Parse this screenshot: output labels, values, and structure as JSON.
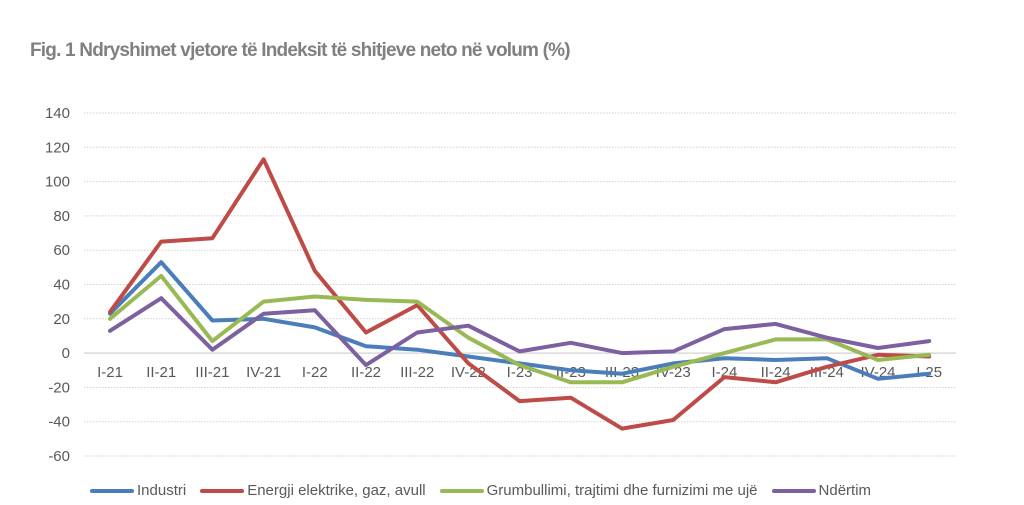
{
  "chart_data": {
    "type": "line",
    "title": "Fig. 1 Ndryshimet vjetore të Indeksit të shitjeve neto në volum (%)",
    "xlabel": "",
    "ylabel": "",
    "ylim": [
      -60,
      140
    ],
    "yticks": [
      140,
      120,
      100,
      80,
      60,
      40,
      20,
      0,
      -20,
      -40,
      -60
    ],
    "grid": true,
    "legend_position": "bottom",
    "categories": [
      "I-21",
      "II-21",
      "III-21",
      "IV-21",
      "I-22",
      "II-22",
      "III-22",
      "IV-22",
      "I-23",
      "II-23",
      "III-23",
      "IV-23",
      "I-24",
      "II-24",
      "III-24",
      "IV-24",
      "I-25"
    ],
    "series": [
      {
        "name": "Industri",
        "color": "#4a7ebb",
        "values": [
          23,
          53,
          19,
          20,
          15,
          4,
          2,
          -2,
          -6,
          -10,
          -12,
          -6,
          -3,
          -4,
          -3,
          -15,
          -12
        ]
      },
      {
        "name": "Energji elektrike, gaz, avull",
        "color": "#be4b48",
        "values": [
          24,
          65,
          67,
          113,
          48,
          12,
          28,
          -6,
          -28,
          -26,
          -44,
          -39,
          -14,
          -17,
          -8,
          -1,
          -2
        ]
      },
      {
        "name": "Grumbullimi, trajtimi dhe furnizimi me ujë",
        "color": "#98b954",
        "values": [
          20,
          45,
          7,
          30,
          33,
          31,
          30,
          9,
          -7,
          -17,
          -17,
          -8,
          0,
          8,
          8,
          -4,
          -1
        ]
      },
      {
        "name": "Ndërtim",
        "color": "#7d60a0",
        "values": [
          13,
          32,
          2,
          23,
          25,
          -7,
          12,
          16,
          1,
          6,
          0,
          1,
          14,
          17,
          9,
          3,
          7
        ]
      }
    ]
  }
}
